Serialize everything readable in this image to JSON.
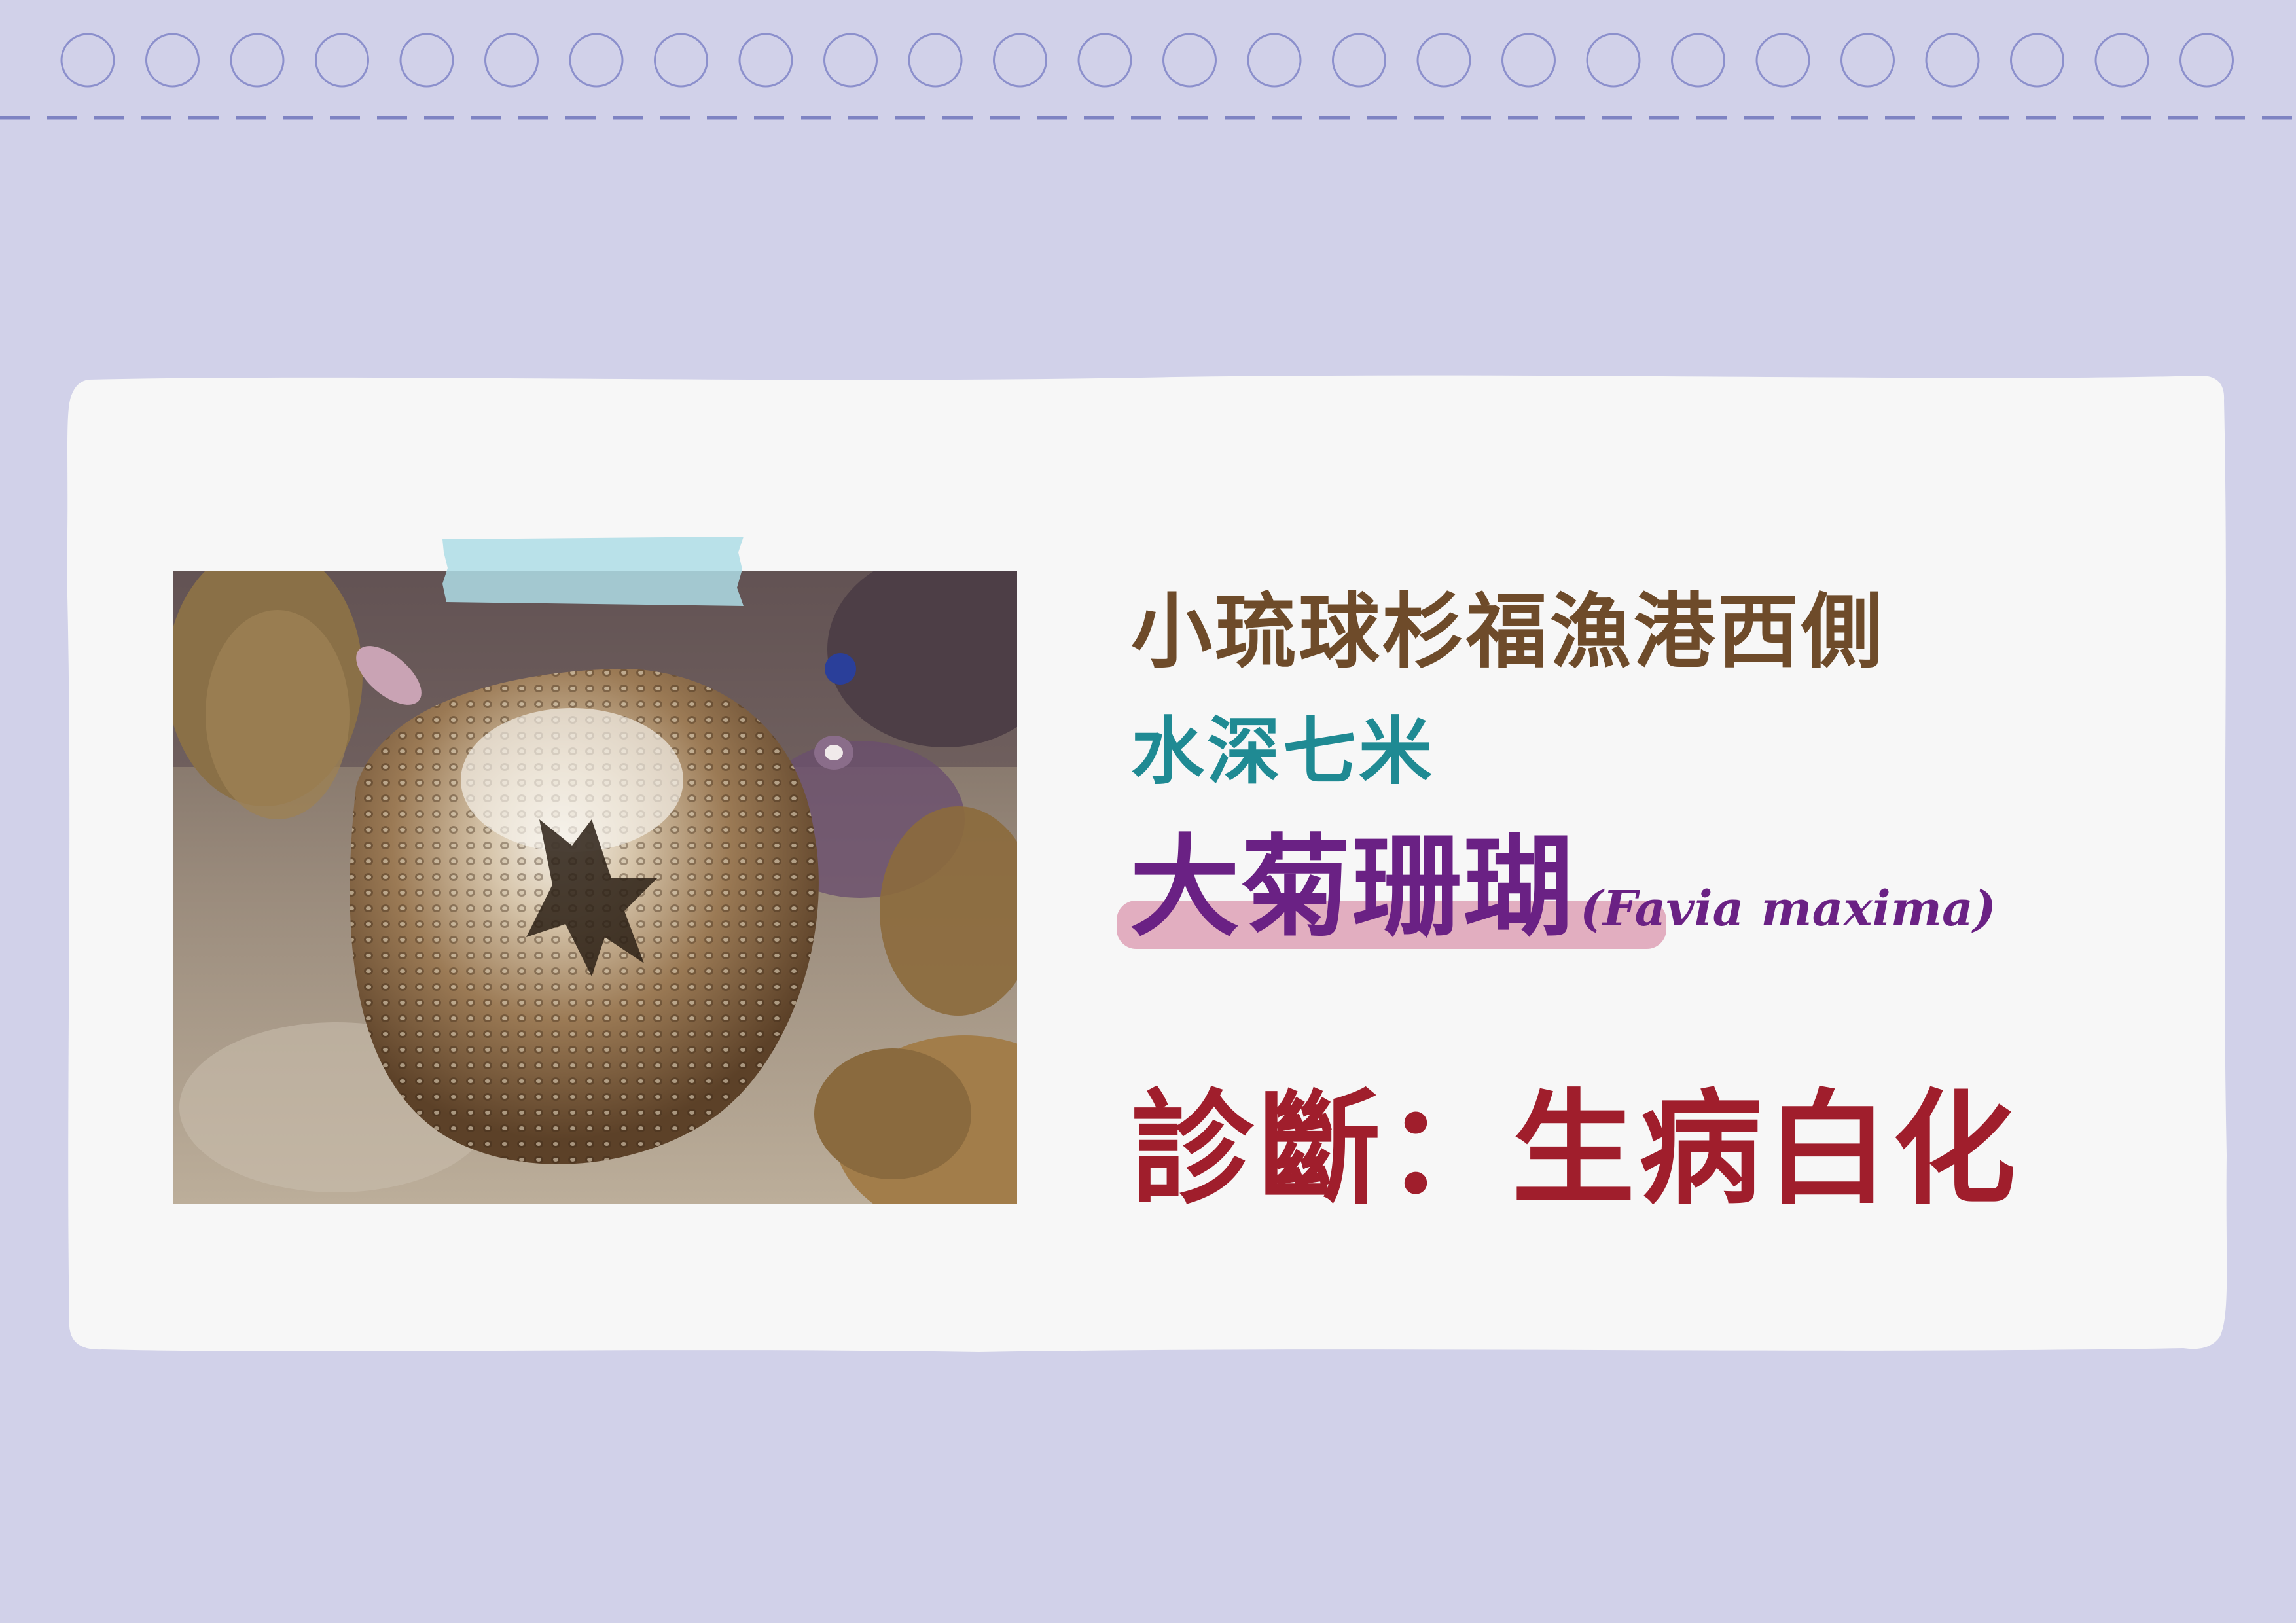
{
  "caption": {
    "location": "小琉球杉福漁港西側",
    "depth": "水深七米",
    "species_name": "大菊珊瑚",
    "scientific_name": "(Favia maxima)",
    "diagnosis": "診斷：生病白化"
  },
  "photo": {
    "subject": "coral-photo"
  },
  "colors": {
    "background": "#d1d1e9",
    "card": "#f7f7f7",
    "location_text": "#6e4b2a",
    "depth_text": "#1f8a93",
    "species_text": "#6a2184",
    "highlight": "#e2aec0",
    "diagnosis_text": "#a01e2c",
    "rings": "#7e83c2"
  }
}
